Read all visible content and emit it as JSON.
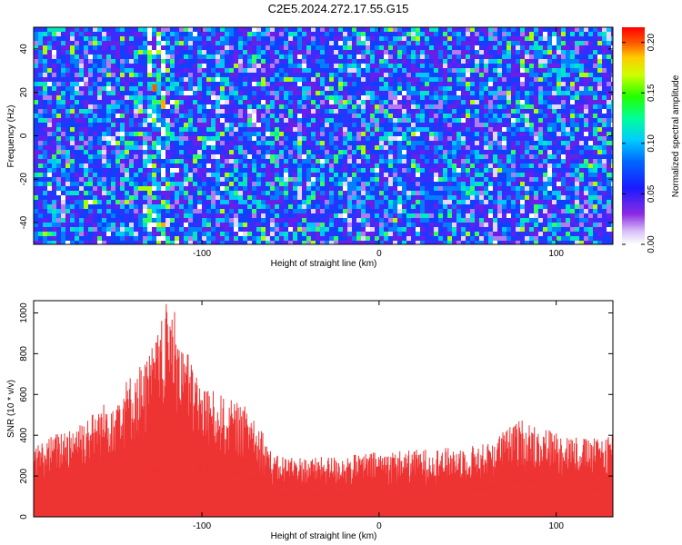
{
  "title": "C2E5.2024.272.17.55.G15",
  "colors": {
    "snr_line": "#ee3333",
    "background": "#ffffff",
    "axis": "#000000",
    "spectrogram_base": "#6a1fe8"
  },
  "chart_data": [
    {
      "type": "heatmap",
      "xlabel": "Height of straight line (km)",
      "ylabel": "Frequency (Hz)",
      "xlim": [
        -195,
        132
      ],
      "ylim": [
        -50,
        50
      ],
      "xticks": [
        -100,
        0,
        100
      ],
      "yticks": [
        -40,
        -20,
        0,
        20,
        40
      ],
      "colorbar": {
        "label": "Normalized spectral amplitude",
        "range": [
          0.0,
          0.215
        ],
        "ticks": [
          0.0,
          0.05,
          0.1,
          0.15,
          0.2
        ],
        "tick_labels": [
          "0.00",
          "0.05",
          "0.10",
          "0.15",
          "0.20"
        ],
        "colormap": "white-purple-blue-cyan-green-yellow-red"
      },
      "features": [
        {
          "x": -127,
          "y_range": [
            -50,
            45
          ],
          "description": "bright vertical band with peak amplitude ~0.2 near 20 Hz"
        }
      ]
    },
    {
      "type": "line",
      "xlabel": "Height of straight line (km)",
      "ylabel": "SNR (10 * v/v)",
      "xlim": [
        -195,
        132
      ],
      "ylim": [
        0,
        1060
      ],
      "xticks": [
        -100,
        0,
        100
      ],
      "yticks": [
        0,
        200,
        400,
        600,
        800,
        1000
      ],
      "series": [
        {
          "envelope_x": [
            -195,
            -180,
            -160,
            -150,
            -140,
            -130,
            -125,
            -120,
            -115,
            -110,
            -100,
            -90,
            -80,
            -70,
            -60,
            -50,
            -40,
            -20,
            0,
            20,
            40,
            60,
            80,
            100,
            120,
            132
          ],
          "envelope_max": [
            350,
            420,
            520,
            600,
            700,
            800,
            900,
            1050,
            1000,
            850,
            650,
            600,
            560,
            520,
            300,
            300,
            290,
            300,
            320,
            330,
            340,
            360,
            480,
            420,
            380,
            420
          ],
          "baseline_min": 0,
          "typical_level": 150
        }
      ]
    }
  ]
}
